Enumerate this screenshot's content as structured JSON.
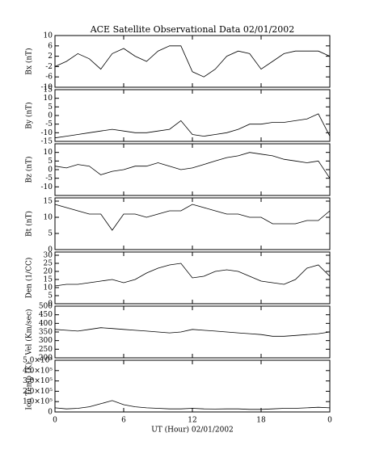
{
  "chart_data": [
    {
      "type": "line",
      "title": "ACE Satellite Observational Data   02/01/2002",
      "ylabel": "Bx (nT)",
      "color": "#000000",
      "x": [
        0,
        1,
        2,
        3,
        4,
        5,
        6,
        7,
        8,
        9,
        10,
        11,
        12,
        13,
        14,
        15,
        16,
        17,
        18,
        19,
        20,
        21,
        22,
        23,
        24
      ],
      "values": [
        -2,
        0,
        3,
        1,
        -3,
        3,
        5,
        2,
        0,
        4,
        6,
        6,
        -4,
        -6,
        -3,
        2,
        4,
        3,
        -3,
        0,
        3,
        4,
        4,
        4,
        2
      ],
      "xlim": [
        0,
        24
      ],
      "ylim": [
        -10,
        10
      ],
      "yticks": [
        -10,
        -6,
        -2,
        2,
        6,
        10
      ]
    },
    {
      "type": "line",
      "ylabel": "By (nT)",
      "color": "#000000",
      "x": [
        0,
        1,
        2,
        3,
        4,
        5,
        6,
        7,
        8,
        9,
        10,
        11,
        12,
        13,
        14,
        15,
        16,
        17,
        18,
        19,
        20,
        21,
        22,
        23,
        24
      ],
      "values": [
        -13,
        -12,
        -11,
        -10,
        -9,
        -8,
        -9,
        -10,
        -10,
        -9,
        -8,
        -3,
        -11,
        -12,
        -11,
        -10,
        -8,
        -5,
        -5,
        -4,
        -4,
        -3,
        -2,
        1,
        -12
      ],
      "xlim": [
        0,
        24
      ],
      "ylim": [
        -15,
        15
      ],
      "yticks": [
        -15,
        -10,
        -5,
        0,
        5,
        10,
        15
      ]
    },
    {
      "type": "line",
      "ylabel": "Bz (nT)",
      "color": "#000000",
      "x": [
        0,
        1,
        2,
        3,
        4,
        5,
        6,
        7,
        8,
        9,
        10,
        11,
        12,
        13,
        14,
        15,
        16,
        17,
        18,
        19,
        20,
        21,
        22,
        23,
        24
      ],
      "values": [
        2,
        1,
        3,
        2,
        -3,
        -1,
        0,
        2,
        2,
        4,
        2,
        0,
        1,
        3,
        5,
        7,
        8,
        10,
        9,
        8,
        6,
        5,
        4,
        5,
        -5
      ],
      "xlim": [
        0,
        24
      ],
      "ylim": [
        -15,
        15
      ],
      "yticks": [
        -10,
        -5,
        0,
        5,
        10
      ]
    },
    {
      "type": "line",
      "ylabel": "Bt (nT)",
      "color": "#000000",
      "x": [
        0,
        1,
        2,
        3,
        4,
        5,
        6,
        7,
        8,
        9,
        10,
        11,
        12,
        13,
        14,
        15,
        16,
        17,
        18,
        19,
        20,
        21,
        22,
        23,
        24
      ],
      "values": [
        14,
        13,
        12,
        11,
        11,
        6,
        11,
        11,
        10,
        11,
        12,
        12,
        14,
        13,
        12,
        11,
        11,
        10,
        10,
        8,
        8,
        8,
        9,
        9,
        12
      ],
      "xlim": [
        0,
        24
      ],
      "ylim": [
        0,
        16
      ],
      "yticks": [
        0,
        5,
        10,
        15
      ]
    },
    {
      "type": "line",
      "ylabel": "Den (1/CC)",
      "color": "#000000",
      "x": [
        0,
        1,
        2,
        3,
        4,
        5,
        6,
        7,
        8,
        9,
        10,
        11,
        12,
        13,
        14,
        15,
        16,
        17,
        18,
        19,
        20,
        21,
        22,
        23,
        24
      ],
      "values": [
        11,
        12,
        12,
        13,
        14,
        15,
        13,
        15,
        19,
        22,
        24,
        25,
        16,
        17,
        20,
        21,
        20,
        17,
        14,
        13,
        12,
        15,
        22,
        24,
        17
      ],
      "xlim": [
        0,
        24
      ],
      "ylim": [
        0,
        32
      ],
      "yticks": [
        0,
        5,
        10,
        15,
        20,
        25,
        30
      ]
    },
    {
      "type": "line",
      "ylabel": "Vel (Km/sec)",
      "color": "#000000",
      "x": [
        0,
        1,
        2,
        3,
        4,
        5,
        6,
        7,
        8,
        9,
        10,
        11,
        12,
        13,
        14,
        15,
        16,
        17,
        18,
        19,
        20,
        21,
        22,
        23,
        24
      ],
      "values": [
        365,
        360,
        355,
        365,
        375,
        370,
        365,
        360,
        355,
        350,
        345,
        350,
        365,
        360,
        355,
        350,
        345,
        340,
        335,
        325,
        325,
        330,
        335,
        340,
        350
      ],
      "xlim": [
        0,
        24
      ],
      "ylim": [
        200,
        500
      ],
      "yticks": [
        200,
        250,
        300,
        350,
        400,
        450,
        500
      ]
    },
    {
      "type": "line",
      "ylabel": "Ion Temp (K)",
      "xlabel": "UT (Hour)   02/01/2002",
      "color": "#000000",
      "x": [
        0,
        1,
        2,
        3,
        4,
        5,
        6,
        7,
        8,
        9,
        10,
        11,
        12,
        13,
        14,
        15,
        16,
        17,
        18,
        19,
        20,
        21,
        22,
        23,
        24
      ],
      "values": [
        40000,
        30000,
        35000,
        50000,
        80000,
        110000,
        70000,
        50000,
        40000,
        35000,
        30000,
        30000,
        35000,
        30000,
        28000,
        30000,
        30000,
        25000,
        25000,
        30000,
        35000,
        35000,
        40000,
        45000,
        40000
      ],
      "xlim": [
        0,
        24
      ],
      "ylim": [
        0,
        500000
      ],
      "yticks": [
        0,
        {
          "value": 100000,
          "label": "1.0×10⁵"
        },
        {
          "value": 200000,
          "label": "2.0×10⁵"
        },
        {
          "value": 300000,
          "label": "3.0×10⁵"
        },
        {
          "value": 400000,
          "label": "4.0×10⁵"
        },
        {
          "value": 500000,
          "label": "5.0×10⁵"
        }
      ],
      "xticks": [
        0,
        6,
        12,
        18,
        {
          "value": 24,
          "label": "0"
        }
      ]
    }
  ]
}
